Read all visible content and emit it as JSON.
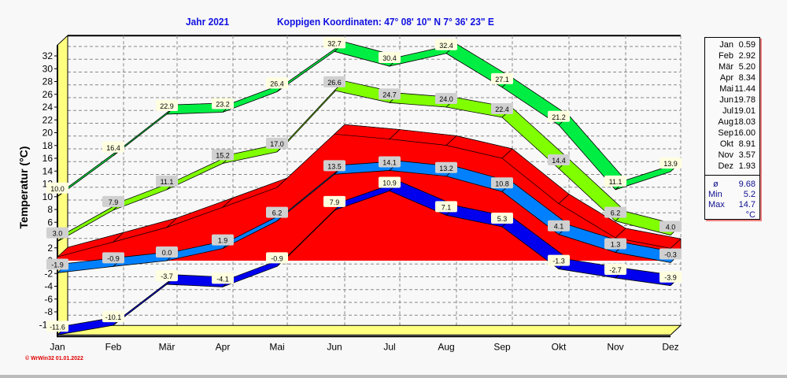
{
  "header": {
    "year": "Jahr  2021",
    "location": "Koppigen  Koordinaten: 47° 08' 10\" N  7° 36' 23\" E"
  },
  "copyright": "© WrWin32  01.01.2022",
  "legend": {
    "rows": [
      {
        "month": "Jan",
        "value": "0.59"
      },
      {
        "month": "Feb",
        "value": "2.92"
      },
      {
        "month": "Mär",
        "value": "5.20"
      },
      {
        "month": "Apr",
        "value": "8.34"
      },
      {
        "month": "Mai",
        "value": "11.44"
      },
      {
        "month": "Jun",
        "value": "19.78"
      },
      {
        "month": "Jul",
        "value": "19.01"
      },
      {
        "month": "Aug",
        "value": "18.03"
      },
      {
        "month": "Sep",
        "value": "16.00"
      },
      {
        "month": "Okt",
        "value": "8.91"
      },
      {
        "month": "Nov",
        "value": "3.57"
      },
      {
        "month": "Dez",
        "value": "1.93"
      }
    ],
    "avg_label": "ø",
    "avg": "9.68",
    "min_label": "Min",
    "min": "5.2",
    "max_label": "Max",
    "max": "14.7",
    "unit": "°C"
  },
  "chart_data": {
    "type": "area",
    "ylabel": "Temperatur  (°C)",
    "ylim": [
      -11.6,
      33.7
    ],
    "yticks": [
      -10,
      -8,
      -6,
      -4,
      -2,
      0,
      2,
      4,
      6,
      8,
      10,
      12,
      14,
      16,
      18,
      20,
      22,
      24,
      26,
      28,
      30,
      32
    ],
    "grid": true,
    "categories": [
      "Jan",
      "Feb",
      "Mär",
      "Apr",
      "Mai",
      "Jun",
      "Jul",
      "Aug",
      "Sep",
      "Okt",
      "Nov",
      "Dez"
    ],
    "series": [
      {
        "values": [
          0.59,
          2.92,
          5.2,
          8.34,
          11.44,
          19.78,
          19.01,
          18.03,
          16.0,
          8.91,
          3.57,
          1.93
        ],
        "color": "#ff0000",
        "style": "area"
      },
      {
        "values": [
          10.0,
          16.4,
          22.9,
          23.2,
          26.4,
          32.7,
          30.4,
          32.4,
          27.1,
          21.2,
          11.1,
          13.9
        ],
        "color": "#00ee44",
        "style": "ribbon",
        "label_bg": "#ffffe0"
      },
      {
        "values": [
          3.0,
          7.9,
          11.1,
          15.2,
          17.0,
          26.6,
          24.7,
          24.0,
          22.4,
          14.4,
          6.2,
          4.0
        ],
        "color": "#80ff00",
        "style": "ribbon",
        "label_bg": "#d0d0d0"
      },
      {
        "values": [
          -1.9,
          -0.9,
          0.0,
          1.9,
          6.2,
          13.5,
          14.1,
          13.2,
          10.8,
          4.1,
          1.3,
          -0.3
        ],
        "color": "#0080ff",
        "style": "ribbon",
        "label_bg": "#d0d0d0"
      },
      {
        "values": [
          -11.6,
          -10.1,
          -3.7,
          -4.1,
          -0.9,
          7.9,
          10.9,
          7.1,
          5.3,
          -1.3,
          -2.7,
          -3.9
        ],
        "color": "#0000ee",
        "style": "ribbon",
        "label_bg": "#ffffe0"
      }
    ]
  }
}
